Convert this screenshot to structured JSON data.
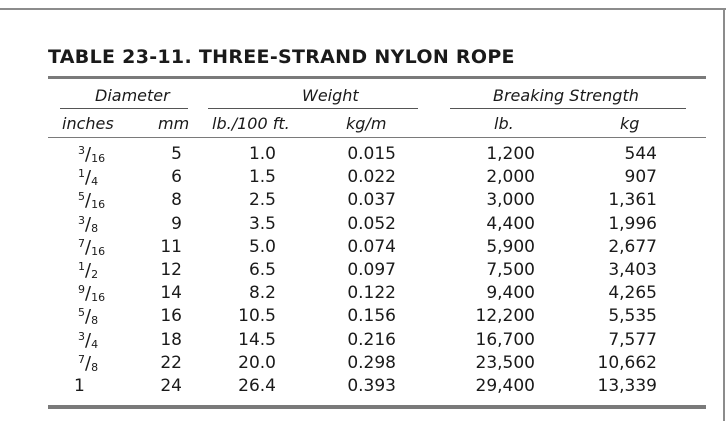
{
  "title": "TABLE 23-11. THREE-STRAND NYLON ROPE",
  "headers": {
    "groups": {
      "diameter": "Diameter",
      "weight": "Weight",
      "breaking": "Breaking Strength"
    },
    "columns": [
      "inches",
      "mm",
      "lb./100 ft.",
      "kg/m",
      "lb.",
      "kg"
    ]
  },
  "rows": [
    {
      "inches": {
        "num": "3",
        "den": "16"
      },
      "mm": "5",
      "lb100": "1.0",
      "kgm": "0.015",
      "lb": "1,200",
      "kg": "544"
    },
    {
      "inches": {
        "num": "1",
        "den": "4"
      },
      "mm": "6",
      "lb100": "1.5",
      "kgm": "0.022",
      "lb": "2,000",
      "kg": "907"
    },
    {
      "inches": {
        "num": "5",
        "den": "16"
      },
      "mm": "8",
      "lb100": "2.5",
      "kgm": "0.037",
      "lb": "3,000",
      "kg": "1,361"
    },
    {
      "inches": {
        "num": "3",
        "den": "8"
      },
      "mm": "9",
      "lb100": "3.5",
      "kgm": "0.052",
      "lb": "4,400",
      "kg": "1,996"
    },
    {
      "inches": {
        "num": "7",
        "den": "16"
      },
      "mm": "11",
      "lb100": "5.0",
      "kgm": "0.074",
      "lb": "5,900",
      "kg": "2,677"
    },
    {
      "inches": {
        "num": "1",
        "den": "2"
      },
      "mm": "12",
      "lb100": "6.5",
      "kgm": "0.097",
      "lb": "7,500",
      "kg": "3,403"
    },
    {
      "inches": {
        "num": "9",
        "den": "16"
      },
      "mm": "14",
      "lb100": "8.2",
      "kgm": "0.122",
      "lb": "9,400",
      "kg": "4,265"
    },
    {
      "inches": {
        "num": "5",
        "den": "8"
      },
      "mm": "16",
      "lb100": "10.5",
      "kgm": "0.156",
      "lb": "12,200",
      "kg": "5,535"
    },
    {
      "inches": {
        "num": "3",
        "den": "4"
      },
      "mm": "18",
      "lb100": "14.5",
      "kgm": "0.216",
      "lb": "16,700",
      "kg": "7,577"
    },
    {
      "inches": {
        "num": "7",
        "den": "8"
      },
      "mm": "22",
      "lb100": "20.0",
      "kgm": "0.298",
      "lb": "23,500",
      "kg": "10,662"
    },
    {
      "inches": {
        "whole": "1"
      },
      "mm": "24",
      "lb100": "26.4",
      "kgm": "0.393",
      "lb": "29,400",
      "kg": "13,339"
    }
  ]
}
